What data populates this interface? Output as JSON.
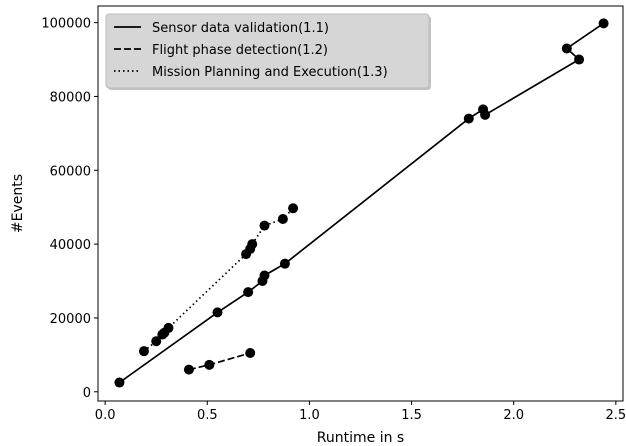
{
  "chart_data": {
    "type": "line",
    "xlabel": "Runtime in s",
    "ylabel": "#Events",
    "xlim": [
      -0.035,
      2.535
    ],
    "ylim": [
      -2500,
      104500
    ],
    "xticks": [
      0.0,
      0.5,
      1.0,
      1.5,
      2.0,
      2.5
    ],
    "xtick_labels": [
      "0.0",
      "0.5",
      "1.0",
      "1.5",
      "2.0",
      "2.5"
    ],
    "yticks": [
      0,
      20000,
      40000,
      60000,
      80000,
      100000
    ],
    "ytick_labels": [
      "0",
      "20000",
      "40000",
      "60000",
      "80000",
      "100000"
    ],
    "grid": false,
    "legend_position": "top-left",
    "series": [
      {
        "name": "Sensor data validation(1.1)",
        "linestyle": "solid",
        "color": "#000000",
        "x": [
          0.07,
          0.55,
          0.7,
          0.77,
          0.78,
          0.88,
          1.78,
          1.85,
          1.86,
          2.32,
          2.26,
          2.44
        ],
        "y": [
          2500,
          21500,
          27000,
          30000,
          31500,
          34700,
          74000,
          76500,
          75000,
          90000,
          93000,
          99800
        ]
      },
      {
        "name": "Flight phase detection(1.2)",
        "linestyle": "dashed",
        "color": "#000000",
        "x": [
          0.41,
          0.51,
          0.71
        ],
        "y": [
          6000,
          7300,
          10500
        ]
      },
      {
        "name": "Mission Planning and Execution(1.3)",
        "linestyle": "dotted",
        "color": "#000000",
        "x": [
          0.19,
          0.25,
          0.28,
          0.29,
          0.31,
          0.69,
          0.71,
          0.72,
          0.78,
          0.87,
          0.92
        ],
        "y": [
          11000,
          13700,
          15500,
          16000,
          17300,
          37300,
          38700,
          40000,
          45000,
          46800,
          49700
        ]
      }
    ]
  }
}
